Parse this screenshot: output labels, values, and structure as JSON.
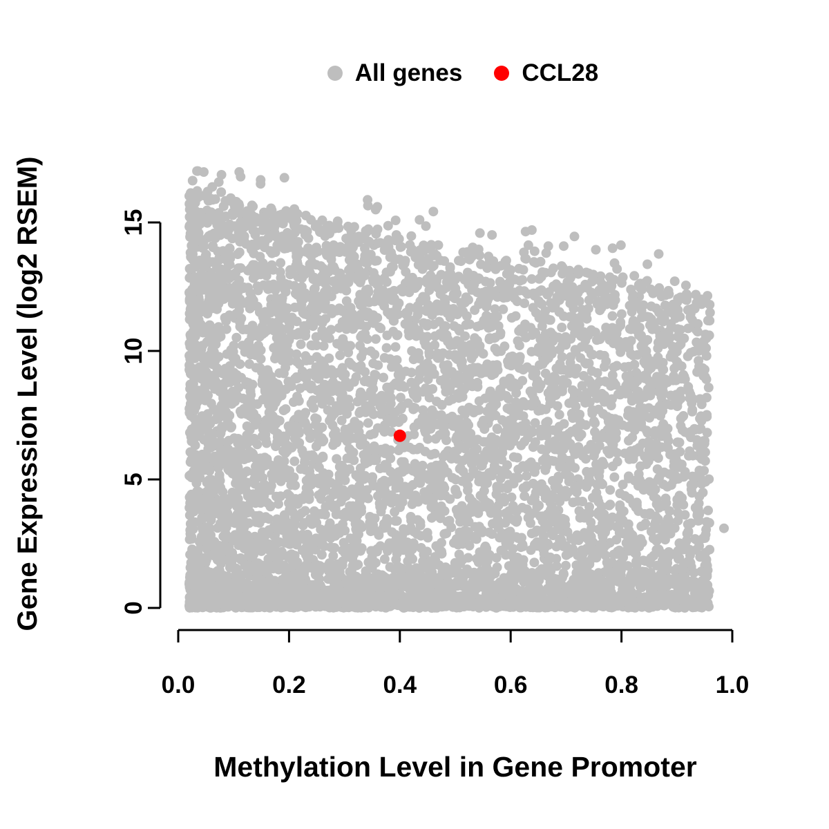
{
  "figure": {
    "background": "#ffffff"
  },
  "chart_data": {
    "type": "scatter",
    "title": "",
    "xlabel": "Methylation Level in Gene Promoter",
    "ylabel": "Gene Expression Level (log2 RSEM)",
    "xlim": [
      0.0,
      1.0
    ],
    "ylim": [
      0,
      17
    ],
    "grid": false,
    "legend_position": "top-center",
    "x_ticks": [
      0.0,
      0.2,
      0.4,
      0.6,
      0.8,
      1.0
    ],
    "x_tick_labels": [
      "0.0",
      "0.2",
      "0.4",
      "0.6",
      "0.8",
      "1.0"
    ],
    "y_ticks": [
      0,
      5,
      10,
      15
    ],
    "y_tick_labels": [
      "0",
      "5",
      "10",
      "15"
    ],
    "axis_color": "#000000",
    "legend": [
      {
        "label": "All genes",
        "color": "#BEBEBE"
      },
      {
        "label": "CCL28",
        "color": "#FF0000"
      }
    ],
    "series": [
      {
        "name": "All genes",
        "type": "cloud",
        "color": "#BEBEBE",
        "point_count": 6500,
        "seed": 20240605,
        "x_min": 0.02,
        "x_max": 0.96,
        "y_min": 0,
        "y_max": 17,
        "upper_envelope": {
          "intercept": 16.3,
          "slope": -4.3
        },
        "description": "Dense cloud of genes: expression upper bound decreases with promoter methylation from ~16.5 log2 RSEM at methylation ~0 to ~12 at methylation ~1; very dense band near y=0 across all methylation levels; density highest at low methylation.",
        "extra_points": [
          [
            0.985,
            3.1
          ]
        ]
      },
      {
        "name": "CCL28",
        "type": "points",
        "color": "#FF0000",
        "points": [
          [
            0.4,
            6.7
          ]
        ]
      }
    ]
  }
}
